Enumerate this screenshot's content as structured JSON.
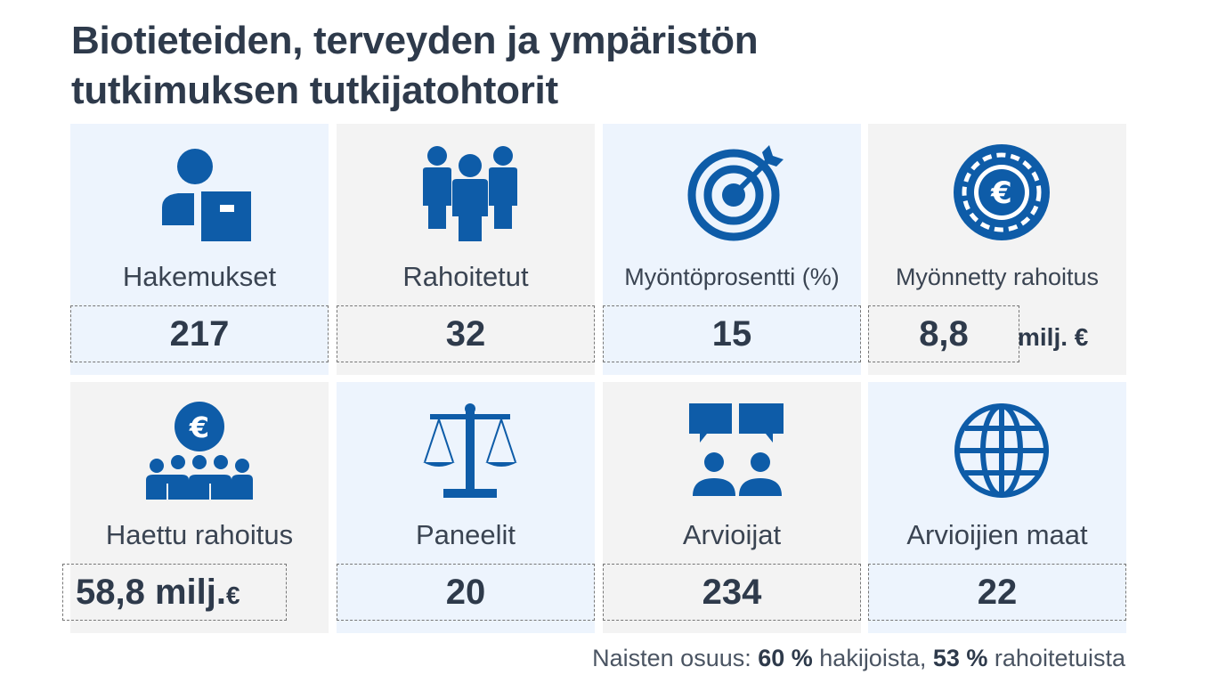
{
  "title_line1": "Biotieteiden, terveyden ja ympäristön",
  "title_line2": "tutkimuksen tutkijatohtorit",
  "cards": [
    {
      "label": "Hakemukset",
      "value": "217",
      "icon": "applicant-icon"
    },
    {
      "label": "Rahoitetut",
      "value": "32",
      "icon": "people-group-icon"
    },
    {
      "label": "Myöntöprosentti (%)",
      "value": "15",
      "icon": "target-icon"
    },
    {
      "label": "Myönnetty rahoitus",
      "value": "8,8",
      "unit": "milj. €",
      "icon": "euro-coin-icon"
    },
    {
      "label": "Haettu rahoitus",
      "value": "58,8 milj.",
      "unit": "€",
      "icon": "euro-audience-icon"
    },
    {
      "label": "Paneelit",
      "value": "20",
      "icon": "scales-icon"
    },
    {
      "label": "Arvioijat",
      "value": "234",
      "icon": "discussion-icon"
    },
    {
      "label": "Arvioijien maat",
      "value": "22",
      "icon": "globe-icon"
    }
  ],
  "footnote": {
    "prefix": "Naisten osuus: ",
    "pct_applicants": "60 %",
    "applicants_text": " hakijoista, ",
    "pct_funded": "53 %",
    "funded_text": " rahoitetuista"
  },
  "colors": {
    "icon": "#0e5ca8",
    "text": "#2e3a4b",
    "card_light": "#edf4fd",
    "card_grey": "#f3f3f3"
  }
}
